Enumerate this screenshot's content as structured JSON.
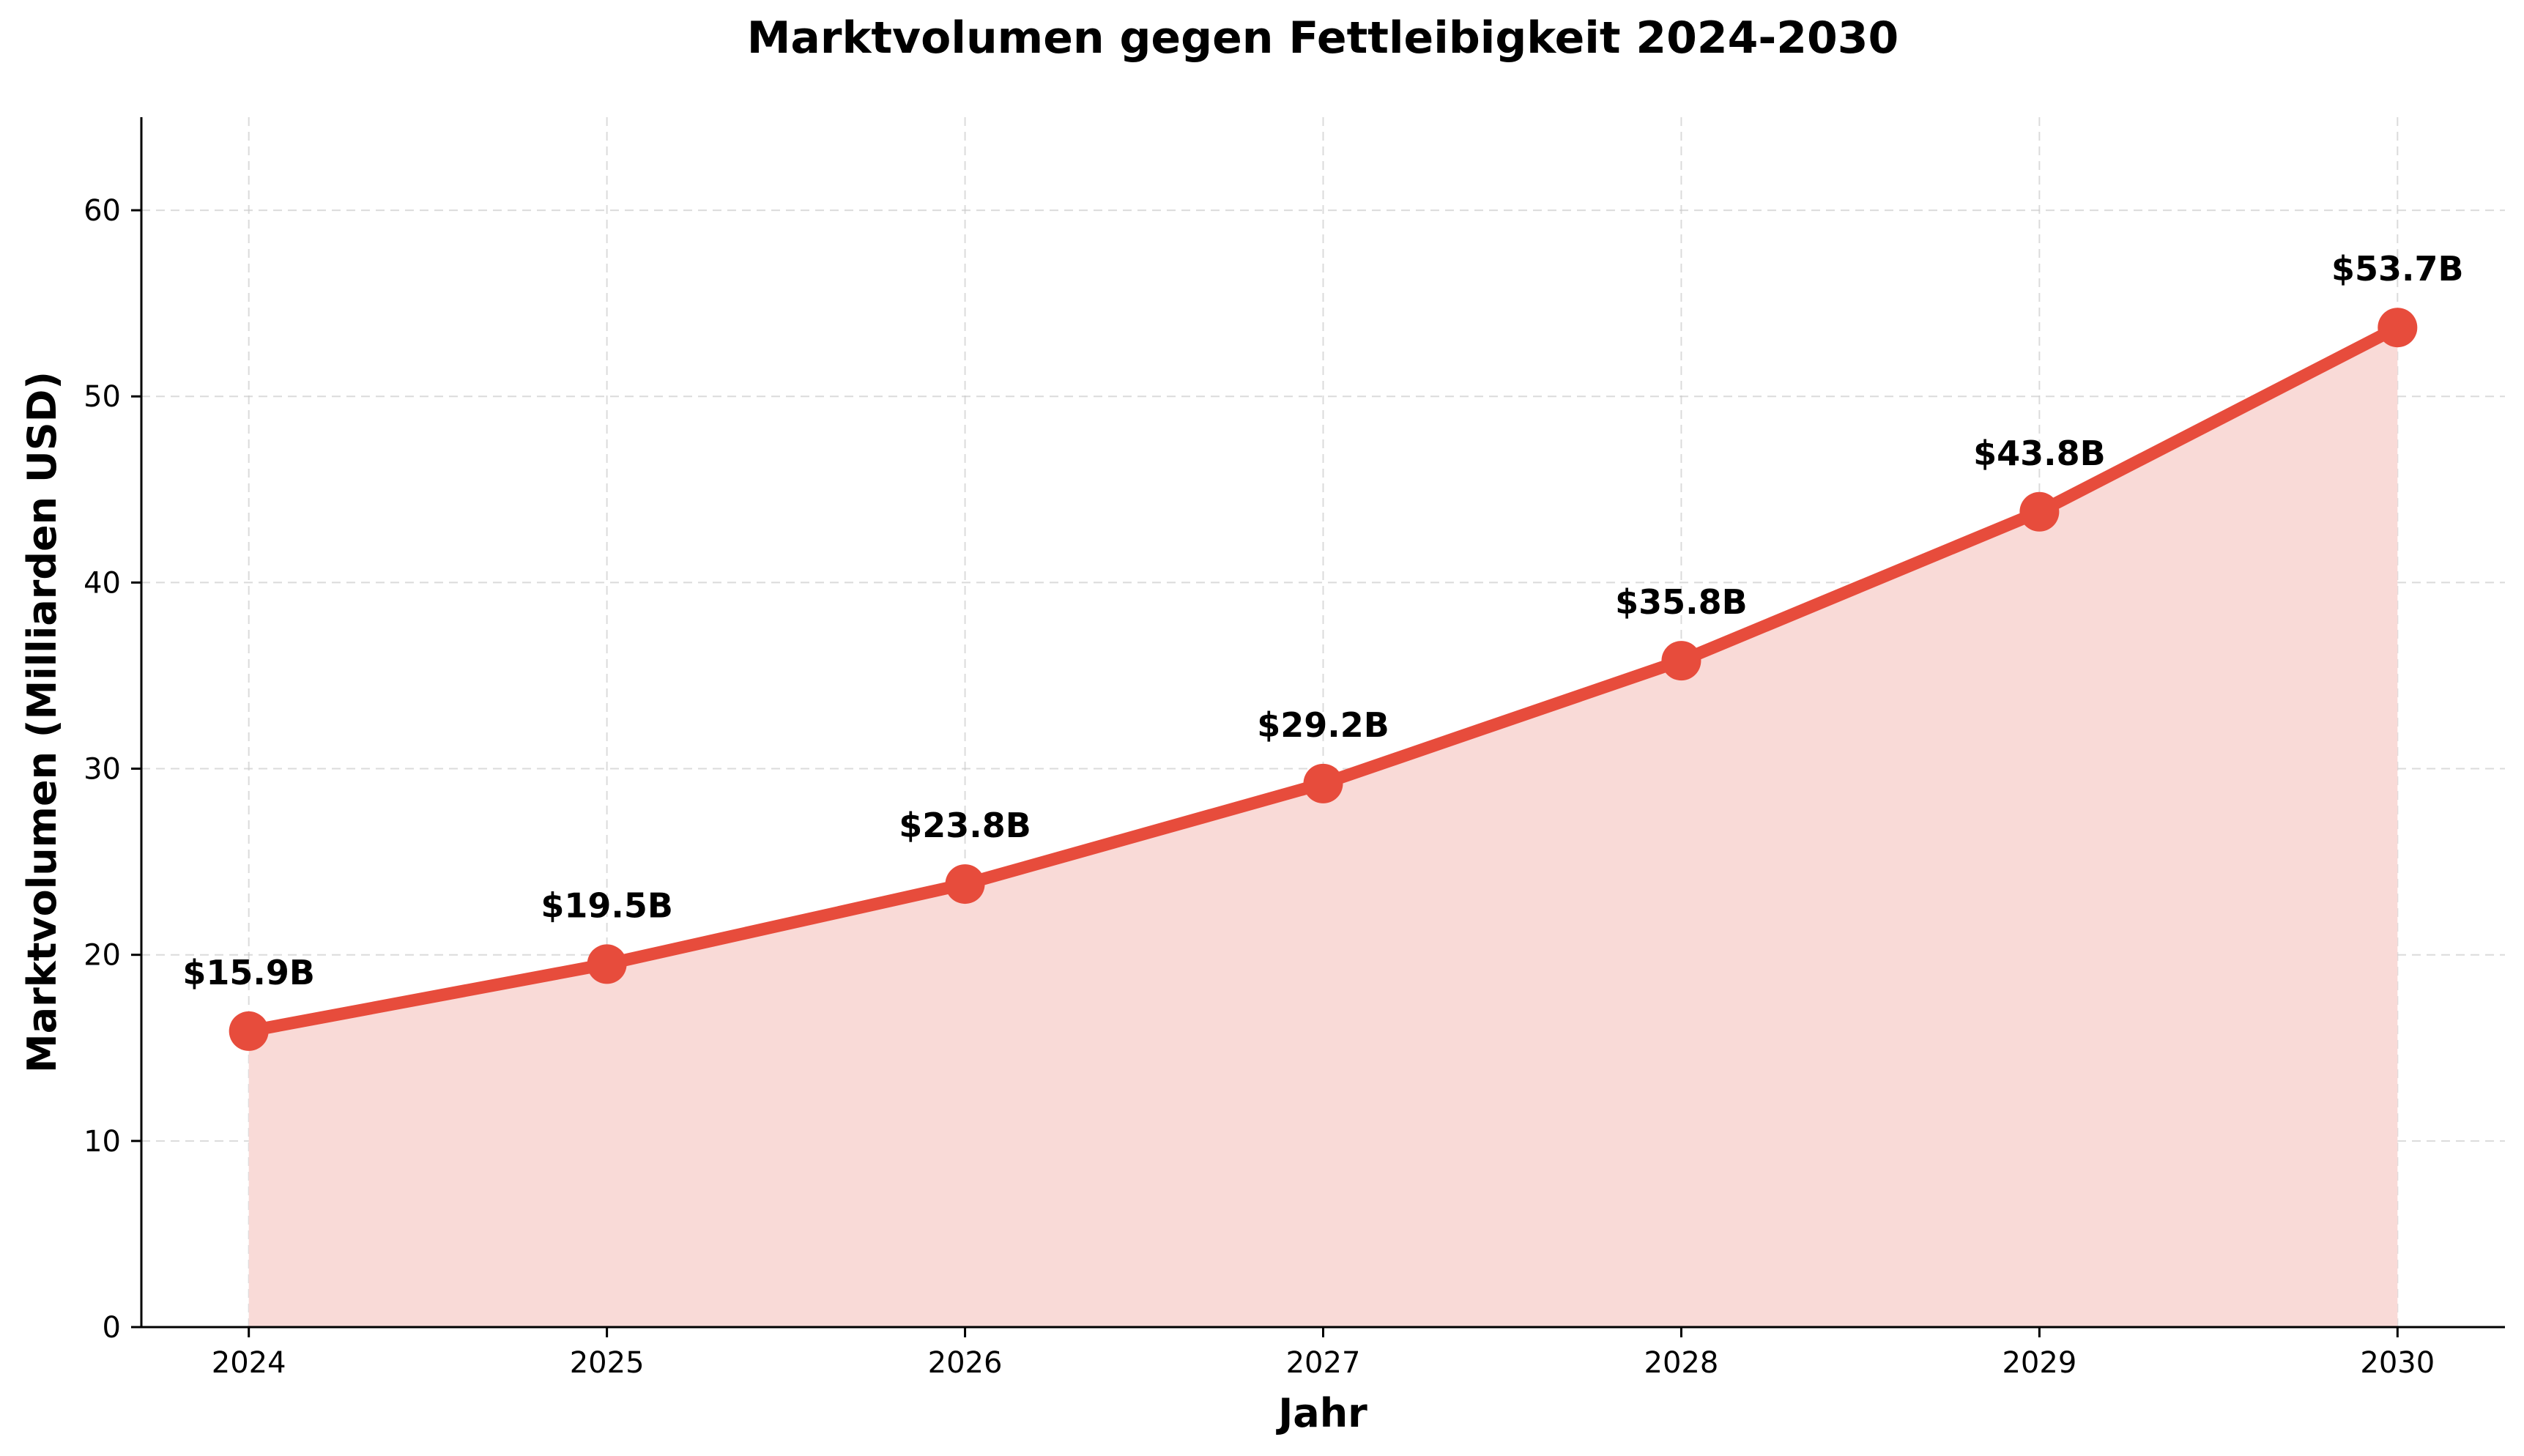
{
  "chart_data": {
    "type": "line",
    "title": "Marktvolumen gegen Fettleibigkeit 2024-2030",
    "xlabel": "Jahr",
    "ylabel": "Marktvolumen (Milliarden USD)",
    "x": [
      2024,
      2025,
      2026,
      2027,
      2028,
      2029,
      2030
    ],
    "x_tick_labels": [
      "2024",
      "2025",
      "2026",
      "2027",
      "2028",
      "2029",
      "2030"
    ],
    "series": [
      {
        "name": "Marktvolumen",
        "values": [
          15.9,
          19.5,
          23.8,
          29.2,
          35.8,
          43.8,
          53.7
        ],
        "data_labels": [
          "$15.9B",
          "$19.5B",
          "$23.8B",
          "$29.2B",
          "$35.8B",
          "$43.8B",
          "$53.7B"
        ]
      }
    ],
    "ylim": [
      0,
      65
    ],
    "xlim": [
      2023.7,
      2030.3
    ],
    "y_ticks": [
      0,
      10,
      20,
      30,
      40,
      50,
      60
    ],
    "y_tick_labels": [
      "0",
      "10",
      "20",
      "30",
      "40",
      "50",
      "60"
    ],
    "grid": true,
    "area_fill": true,
    "colors": {
      "line": "#e74c3c",
      "fill": "#f9dad7"
    }
  }
}
